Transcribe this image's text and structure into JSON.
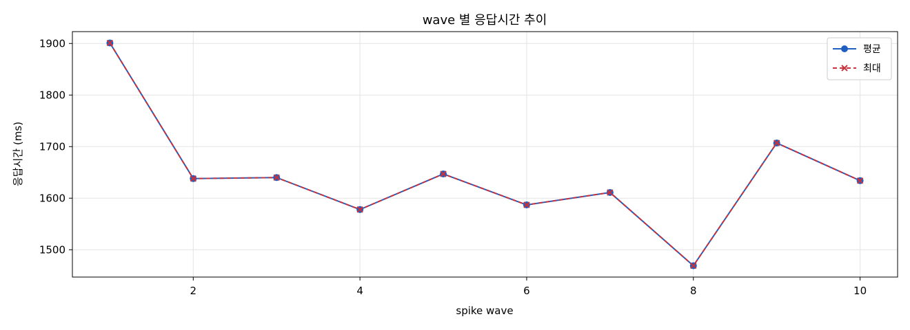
{
  "chart_data": {
    "type": "line",
    "title": "wave 별 응답시간 추이",
    "xlabel": "spike wave",
    "ylabel": "응답시간 (ms)",
    "x": [
      1,
      2,
      3,
      4,
      5,
      6,
      7,
      8,
      9,
      10
    ],
    "xlim": [
      0.55,
      10.45
    ],
    "ylim": [
      1447,
      1923
    ],
    "xticks": [
      2,
      4,
      6,
      8,
      10
    ],
    "yticks": [
      1500,
      1600,
      1700,
      1800,
      1900
    ],
    "grid": true,
    "legend_position": "top-right",
    "series": [
      {
        "name": "평균",
        "values": [
          1901,
          1638,
          1640,
          1578,
          1647,
          1587,
          1611,
          1469,
          1707,
          1634
        ],
        "color": "#1f5fbf",
        "style": "solid",
        "marker": "circle"
      },
      {
        "name": "최대",
        "values": [
          1901,
          1638,
          1640,
          1578,
          1647,
          1587,
          1611,
          1469,
          1707,
          1634
        ],
        "color": "#c8323c",
        "style": "dashed",
        "marker": "x"
      }
    ]
  }
}
